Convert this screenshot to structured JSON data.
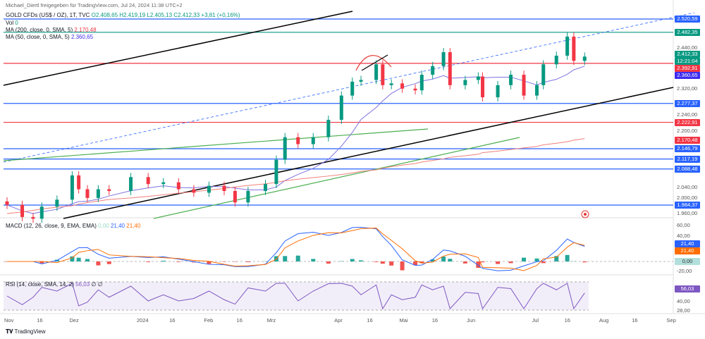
{
  "header": {
    "credit": "Michael_Diertl freigegeben für TradingView.com, Jul 24, 2024 11:38 UTC+2",
    "symbol": "GOLD CFDs (US$ / OZ), 1T, TVC",
    "o": "O2.408,65",
    "h": "H2.419,19",
    "l": "L2.405,13",
    "c": "C2.412,33",
    "chg": "+3,81 (+0,16%)"
  },
  "legend": {
    "vol": "Vol",
    "vol_val": "0",
    "ma200": "MA (200, close, 0, SMA, 5)",
    "ma200_val": "2.170,48",
    "ma50": "MA (50, close, 0, SMA, 5)",
    "ma50_val": "2.360,65",
    "macd": "MACD (12, 26, close, 9, EMA, EMA)",
    "macd_hist": "0,00",
    "macd_line": "21,40",
    "macd_signal": "21,40",
    "rsi": "RSI (14, close, SMA, 14, 2)",
    "rsi_val": "56,03",
    "rsi_extra": "∅ ∅"
  },
  "price_labels": [
    {
      "text": "2.520,59",
      "color": "#2962ff",
      "price": 2520.59
    },
    {
      "text": "2.482,35",
      "color": "#089981",
      "price": 2482.35
    },
    {
      "text": "2.412,33",
      "color": "#089981",
      "price": 2412.33
    },
    {
      "text": "2.392,91",
      "color": "#f23645",
      "price": 2392.91
    },
    {
      "text": "2.360,65",
      "color": "#3d2cf0",
      "price": 2360.65
    },
    {
      "text": "2.277,37",
      "color": "#2962ff",
      "price": 2277.37
    },
    {
      "text": "2.222,91",
      "color": "#f23645",
      "price": 2222.91
    },
    {
      "text": "2.170,48",
      "color": "#f23645",
      "price": 2170.48
    },
    {
      "text": "2.146,79",
      "color": "#2962ff",
      "price": 2146.79
    },
    {
      "text": "2.117,19",
      "color": "#2962ff",
      "price": 2117.19
    },
    {
      "text": "2.088,48",
      "color": "#2962ff",
      "price": 2088.48
    },
    {
      "text": "1.984,37",
      "color": "#2962ff",
      "price": 1984.37
    }
  ],
  "countdown": "12:21:04",
  "price_ticks": [
    "2.440,00",
    "2.320,00",
    "2.240,00",
    "2.200,00",
    "2.040,00",
    "2.000,00",
    "1.960,00"
  ],
  "macd_ticks": [
    "60,00",
    "40,00",
    "-20,00"
  ],
  "rsi_ticks": [
    "40,00",
    "28,00"
  ],
  "x_ticks": [
    "Nov",
    "16",
    "Dez",
    "2024",
    "16",
    "Feb",
    "16",
    "Mrz",
    "Apr",
    "16",
    "Mai",
    "16",
    "Jun",
    "Jul",
    "16",
    "Aug",
    "16",
    "Sep"
  ],
  "footer": {
    "brand": "TradingView"
  },
  "chart_data": {
    "type": "candlestick",
    "approx_closes": [
      [
        "2023-11-01",
        1985
      ],
      [
        "2023-11-08",
        1950
      ],
      [
        "2023-11-13",
        1945
      ],
      [
        "2023-11-17",
        1980
      ],
      [
        "2023-11-24",
        2000
      ],
      [
        "2023-12-01",
        2070
      ],
      [
        "2023-12-04",
        2030
      ],
      [
        "2023-12-08",
        2005
      ],
      [
        "2023-12-13",
        2030
      ],
      [
        "2023-12-18",
        2025
      ],
      [
        "2023-12-28",
        2065
      ],
      [
        "2024-01-05",
        2045
      ],
      [
        "2024-01-12",
        2050
      ],
      [
        "2024-01-19",
        2030
      ],
      [
        "2024-01-26",
        2020
      ],
      [
        "2024-02-02",
        2040
      ],
      [
        "2024-02-09",
        2025
      ],
      [
        "2024-02-14",
        1992
      ],
      [
        "2024-02-20",
        2025
      ],
      [
        "2024-02-28",
        2045
      ],
      [
        "2024-03-04",
        2115
      ],
      [
        "2024-03-08",
        2180
      ],
      [
        "2024-03-14",
        2160
      ],
      [
        "2024-03-21",
        2180
      ],
      [
        "2024-03-28",
        2230
      ],
      [
        "2024-04-03",
        2300
      ],
      [
        "2024-04-08",
        2340
      ],
      [
        "2024-04-12",
        2345
      ],
      [
        "2024-04-19",
        2390
      ],
      [
        "2024-04-22",
        2330
      ],
      [
        "2024-04-26",
        2335
      ],
      [
        "2024-05-01",
        2320
      ],
      [
        "2024-05-07",
        2315
      ],
      [
        "2024-05-10",
        2360
      ],
      [
        "2024-05-15",
        2385
      ],
      [
        "2024-05-20",
        2425
      ],
      [
        "2024-05-23",
        2330
      ],
      [
        "2024-05-30",
        2345
      ],
      [
        "2024-06-05",
        2355
      ],
      [
        "2024-06-07",
        2295
      ],
      [
        "2024-06-14",
        2330
      ],
      [
        "2024-06-20",
        2360
      ],
      [
        "2024-06-26",
        2300
      ],
      [
        "2024-07-02",
        2330
      ],
      [
        "2024-07-05",
        2390
      ],
      [
        "2024-07-11",
        2415
      ],
      [
        "2024-07-16",
        2470
      ],
      [
        "2024-07-19",
        2400
      ],
      [
        "2024-07-24",
        2412.33
      ]
    ],
    "colors": {
      "up": "#089981",
      "down": "#f23645",
      "ma50": "#7e73e0",
      "ma200": "#f0807a"
    }
  }
}
